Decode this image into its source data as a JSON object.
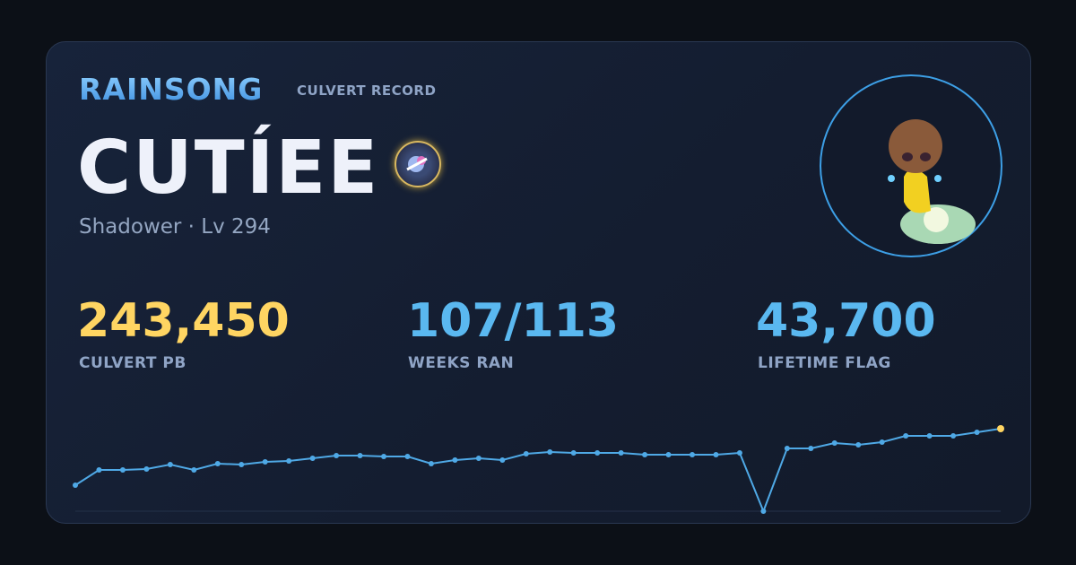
{
  "header": {
    "brand": "RAINSONG",
    "subtitle": "CULVERT RECORD"
  },
  "character": {
    "name": "CUTÍEE",
    "info": "Shadower · Lv 294"
  },
  "stats": [
    {
      "value": "243,450",
      "label": "CULVERT PB",
      "color": "#ffd562"
    },
    {
      "value": "107/113",
      "label": "WEEKS RAN",
      "color": "#5ab8f0"
    },
    {
      "value": "43,700",
      "label": "LIFETIME FLAG",
      "color": "#5ab8f0"
    }
  ],
  "chart_data": {
    "type": "line",
    "color": "#4fa9e6",
    "last_color": "#ffd562",
    "values": [
      29,
      46,
      46,
      47,
      52,
      46,
      53,
      52,
      55,
      56,
      59,
      62,
      62,
      61,
      61,
      53,
      57,
      59,
      57,
      64,
      66,
      65,
      65,
      65,
      63,
      63,
      63,
      63,
      65,
      0,
      70,
      70,
      76,
      74,
      77,
      84,
      84,
      84,
      88,
      92
    ],
    "ylim": [
      0,
      92
    ]
  }
}
